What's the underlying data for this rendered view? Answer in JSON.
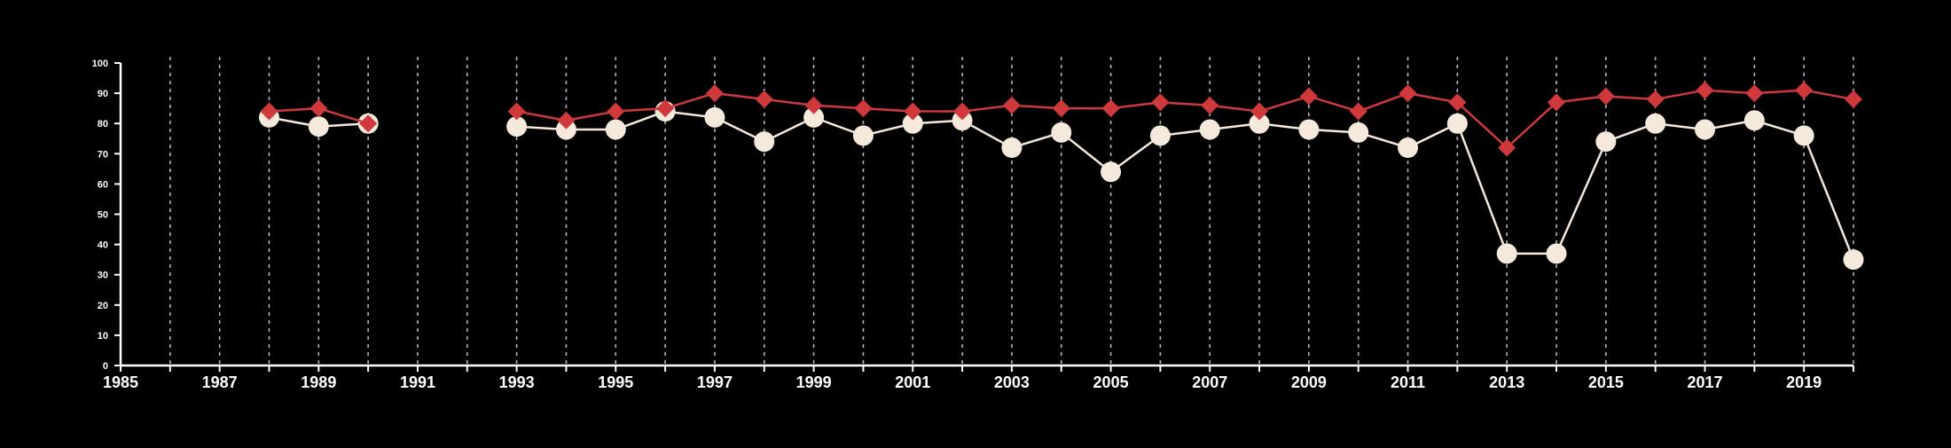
{
  "chart_data": {
    "type": "line",
    "x": [
      1988,
      1989,
      1990,
      1993,
      1994,
      1995,
      1996,
      1997,
      1998,
      1999,
      2000,
      2001,
      2002,
      2003,
      2004,
      2005,
      2006,
      2007,
      2008,
      2009,
      2010,
      2011,
      2012,
      2013,
      2014,
      2015,
      2016,
      2017,
      2018,
      2019,
      2020
    ],
    "series": [
      {
        "marker": "circle",
        "color": "#f5e9dc",
        "values": [
          82,
          79,
          80,
          79,
          78,
          78,
          84,
          82,
          74,
          82,
          76,
          80,
          81,
          72,
          77,
          64,
          76,
          78,
          80,
          78,
          77,
          72,
          80,
          37,
          37,
          74,
          80,
          78,
          81,
          76,
          35
        ]
      },
      {
        "marker": "diamond",
        "color": "#d0393c",
        "values": [
          84,
          85,
          80,
          84,
          81,
          84,
          85,
          90,
          88,
          86,
          85,
          84,
          84,
          86,
          85,
          85,
          87,
          86,
          84,
          89,
          84,
          90,
          87,
          72,
          87,
          89,
          88,
          91,
          90,
          91,
          88
        ]
      }
    ],
    "xlim": [
      1985,
      2020
    ],
    "ylim": [
      0,
      100
    ],
    "x_tick_labels": [
      "1985",
      "1987",
      "1989",
      "1991",
      "1993",
      "1995",
      "1997",
      "1999",
      "2001",
      "2003",
      "2005",
      "2007",
      "2009",
      "2011",
      "2013",
      "2015",
      "2017",
      "2019"
    ],
    "y_tick_labels": [
      "0",
      "10",
      "20",
      "30",
      "40",
      "50",
      "60",
      "70",
      "80",
      "90",
      "100"
    ],
    "vertical_grid": "dashed, every year",
    "background": "#000000",
    "axis_color": "#ffffff",
    "title": "",
    "xlabel": "",
    "ylabel": ""
  }
}
